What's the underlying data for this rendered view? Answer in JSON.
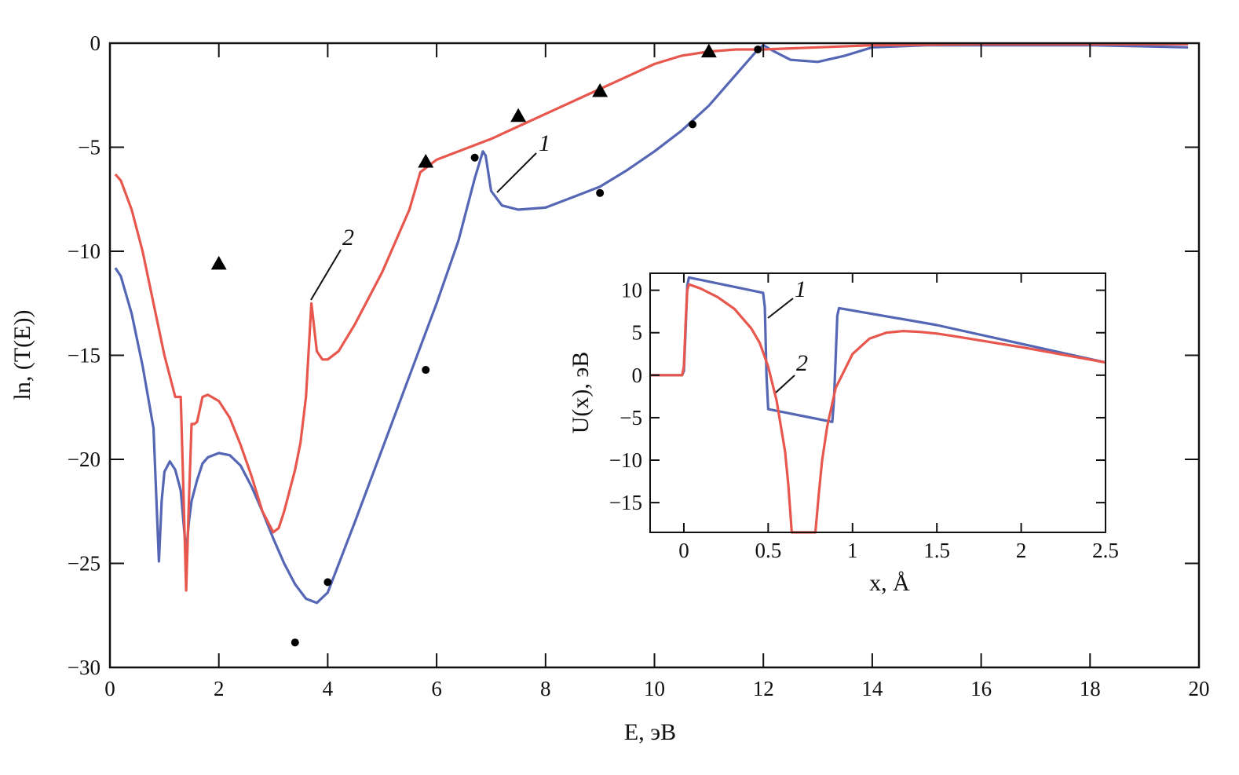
{
  "colors": {
    "curve_1": "#5566b5",
    "curve_2": "#e8574e",
    "markers": "#000000"
  },
  "chart_data": [
    {
      "type": "line",
      "xlabel": "E, эВ",
      "ylabel": "ln, (T(E))",
      "xlim": [
        0,
        20
      ],
      "ylim": [
        -30,
        0
      ],
      "x_ticks": [
        0,
        2,
        4,
        6,
        8,
        10,
        12,
        14,
        16,
        18,
        20
      ],
      "y_ticks": [
        0,
        -5,
        -10,
        -15,
        -20,
        -25,
        -30
      ],
      "x_tick_labels": [
        "0",
        "2",
        "4",
        "6",
        "8",
        "10",
        "12",
        "14",
        "16",
        "18",
        "20"
      ],
      "y_tick_labels": [
        "0",
        "−5",
        "−10",
        "−15",
        "−20",
        "−25",
        "−30"
      ],
      "series": [
        {
          "label": "1",
          "color": "#5566b5",
          "style": "line",
          "x": [
            0.1,
            0.2,
            0.4,
            0.6,
            0.8,
            0.9,
            0.95,
            1.0,
            1.1,
            1.2,
            1.3,
            1.4,
            1.45,
            1.5,
            1.6,
            1.7,
            1.8,
            2.0,
            2.2,
            2.4,
            2.6,
            2.8,
            3.0,
            3.2,
            3.4,
            3.6,
            3.8,
            4.0,
            4.5,
            5.0,
            5.5,
            6.0,
            6.4,
            6.7,
            6.85,
            6.9,
            7.0,
            7.2,
            7.5,
            8.0,
            8.5,
            9.0,
            9.5,
            10.0,
            10.5,
            11.0,
            11.5,
            11.9,
            12.0,
            12.2,
            12.5,
            13.0,
            13.5,
            14.0,
            15.0,
            16.0,
            17.0,
            18.0,
            19.0,
            19.8
          ],
          "y": [
            -10.8,
            -11.2,
            -13.0,
            -15.5,
            -18.5,
            -24.9,
            -22.0,
            -20.6,
            -20.1,
            -20.5,
            -21.5,
            -24.5,
            -23.0,
            -22.0,
            -21.0,
            -20.2,
            -19.9,
            -19.7,
            -19.8,
            -20.3,
            -21.3,
            -22.5,
            -23.8,
            -25.0,
            -26.0,
            -26.7,
            -26.9,
            -26.4,
            -23.0,
            -19.5,
            -16.0,
            -12.5,
            -9.5,
            -6.5,
            -5.2,
            -5.4,
            -7.1,
            -7.8,
            -8.0,
            -7.9,
            -7.4,
            -6.9,
            -6.1,
            -5.2,
            -4.2,
            -3.0,
            -1.5,
            -0.3,
            -0.1,
            -0.4,
            -0.8,
            -0.9,
            -0.6,
            -0.2,
            -0.1,
            -0.1,
            -0.1,
            -0.1,
            -0.15,
            -0.2
          ]
        },
        {
          "label": "2",
          "color": "#e8574e",
          "style": "line",
          "x": [
            0.1,
            0.2,
            0.4,
            0.6,
            0.8,
            1.0,
            1.2,
            1.3,
            1.35,
            1.4,
            1.45,
            1.5,
            1.55,
            1.6,
            1.7,
            1.8,
            2.0,
            2.2,
            2.4,
            2.6,
            2.8,
            3.0,
            3.1,
            3.2,
            3.4,
            3.5,
            3.6,
            3.7,
            3.8,
            3.9,
            4.0,
            4.2,
            4.5,
            5.0,
            5.5,
            5.7,
            6.0,
            6.5,
            7.0,
            7.5,
            8.0,
            8.5,
            9.0,
            9.5,
            10.0,
            10.5,
            11.0,
            11.5,
            12.0,
            13.0,
            14.0,
            16.0,
            18.0,
            19.8
          ],
          "y": [
            -6.3,
            -6.6,
            -8.0,
            -10.0,
            -12.5,
            -15.0,
            -17.0,
            -17.0,
            -21.5,
            -26.3,
            -22.0,
            -18.3,
            -18.3,
            -18.2,
            -17.0,
            -16.9,
            -17.2,
            -18.0,
            -19.3,
            -20.8,
            -22.5,
            -23.5,
            -23.3,
            -22.5,
            -20.5,
            -19.2,
            -17.0,
            -12.5,
            -14.8,
            -15.2,
            -15.2,
            -14.8,
            -13.5,
            -11.0,
            -8.0,
            -6.2,
            -5.6,
            -5.1,
            -4.6,
            -4.0,
            -3.4,
            -2.8,
            -2.2,
            -1.6,
            -1.0,
            -0.6,
            -0.4,
            -0.3,
            -0.3,
            -0.2,
            -0.1,
            -0.05,
            -0.05,
            -0.05
          ]
        },
        {
          "label": "",
          "style": "markers-triangle",
          "color": "#000000",
          "x": [
            2.0,
            5.8,
            7.5,
            9.0,
            11.0
          ],
          "y": [
            -10.6,
            -5.7,
            -3.5,
            -2.3,
            -0.4
          ]
        },
        {
          "label": "",
          "style": "markers-dot",
          "color": "#000000",
          "x": [
            3.4,
            4.0,
            5.8,
            6.7,
            9.0,
            10.7,
            11.9
          ],
          "y": [
            -28.8,
            -25.9,
            -15.7,
            -5.5,
            -7.2,
            -3.9,
            -0.3
          ]
        }
      ],
      "annotations": [
        {
          "text": "1",
          "curve": "1"
        },
        {
          "text": "2",
          "curve": "2"
        }
      ]
    },
    {
      "type": "line",
      "xlabel": "x, Å",
      "ylabel": "U(x), эВ",
      "xlim": [
        -0.2,
        2.5
      ],
      "ylim": [
        -18.5,
        12
      ],
      "x_ticks": [
        0,
        0.5,
        1,
        1.5,
        2,
        2.5
      ],
      "y_ticks": [
        10,
        5,
        0,
        -5,
        -10,
        -15
      ],
      "x_tick_labels": [
        "0",
        "0.5",
        "1",
        "1.5",
        "2",
        "2.5"
      ],
      "y_tick_labels": [
        "10",
        "5",
        "0",
        "−5",
        "−10",
        "−15"
      ],
      "series": [
        {
          "label": "1",
          "color": "#5566b5",
          "style": "line",
          "x": [
            -0.2,
            -0.01,
            0.0,
            0.01,
            0.02,
            0.03,
            0.47,
            0.48,
            0.49,
            0.5,
            0.88,
            0.89,
            0.9,
            0.91,
            0.92,
            1.5,
            2.0,
            2.5
          ],
          "y": [
            0,
            0,
            0.5,
            5.0,
            10.5,
            11.5,
            9.7,
            8.0,
            0.0,
            -4.0,
            -5.5,
            -3.0,
            2.0,
            7.0,
            7.9,
            5.9,
            3.7,
            1.5
          ]
        },
        {
          "label": "2",
          "color": "#e8574e",
          "style": "line",
          "x": [
            -0.2,
            -0.01,
            0.0,
            0.01,
            0.02,
            0.03,
            0.1,
            0.2,
            0.3,
            0.4,
            0.45,
            0.5,
            0.55,
            0.6,
            0.62,
            0.64,
            0.78,
            0.8,
            0.82,
            0.85,
            0.9,
            1.0,
            1.1,
            1.2,
            1.3,
            1.4,
            1.5,
            1.6,
            2.0,
            2.5
          ],
          "y": [
            0,
            0,
            1.0,
            6.0,
            10.0,
            10.7,
            10.2,
            9.2,
            7.8,
            5.5,
            3.8,
            1.0,
            -3.0,
            -9.0,
            -13.0,
            -18.5,
            -18.5,
            -14.0,
            -10.0,
            -6.0,
            -1.5,
            2.5,
            4.3,
            5.0,
            5.2,
            5.1,
            4.9,
            4.6,
            3.3,
            1.5
          ]
        }
      ],
      "annotations": [
        {
          "text": "1",
          "curve": "1"
        },
        {
          "text": "2",
          "curve": "2"
        }
      ]
    }
  ]
}
